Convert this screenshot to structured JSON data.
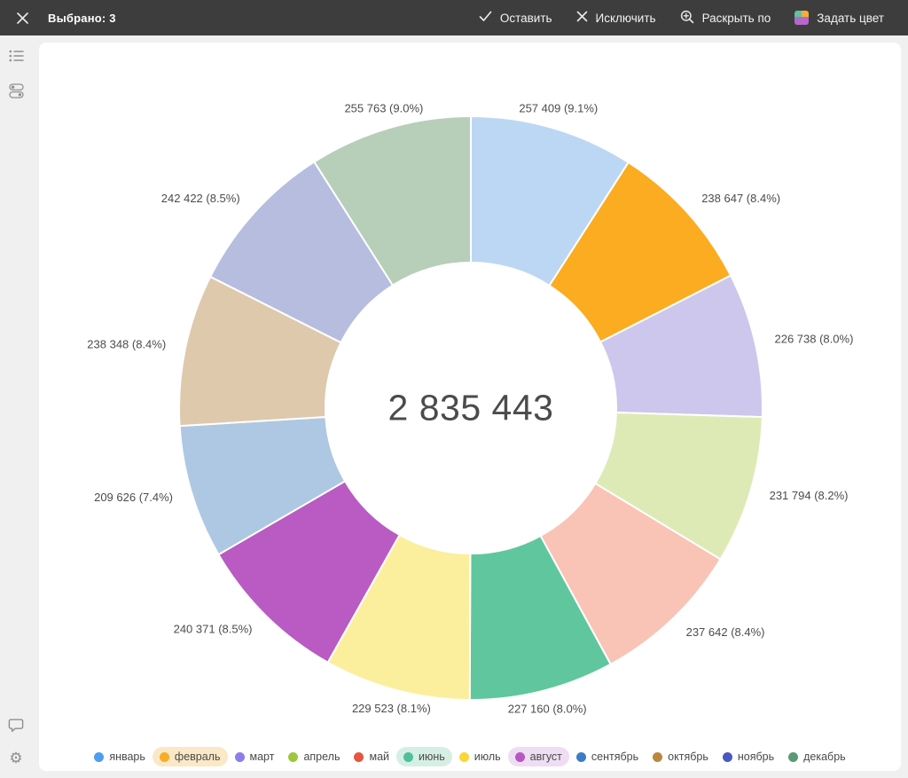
{
  "toolbar": {
    "selected_text": "Выбрано: 3",
    "keep_label": "Оставить",
    "exclude_label": "Исключить",
    "drilldown_label": "Раскрыть по",
    "set_color_label": "Задать цвет"
  },
  "chart_data": {
    "type": "pie",
    "subtype": "donut",
    "title": "",
    "center_total_label": "2 835 443",
    "total": 2835443,
    "legend_position": "bottom",
    "data_label_format": "value (percent)",
    "slices": [
      {
        "label": "январь",
        "value": 257409,
        "pct": 9.1,
        "data_label": "257 409 (9.1%)",
        "color": "#bcd7f3",
        "legend_color": "#4d9eef",
        "selected": false
      },
      {
        "label": "февраль",
        "value": 238647,
        "pct": 8.4,
        "data_label": "238 647 (8.4%)",
        "color": "#fbac20",
        "legend_color": "#f9ac28",
        "selected": true,
        "highlight": "#fbe8c6"
      },
      {
        "label": "март",
        "value": 226738,
        "pct": 8.0,
        "data_label": "226 738 (8.0%)",
        "color": "#cdc7ed",
        "legend_color": "#8b7fe8",
        "selected": false
      },
      {
        "label": "апрель",
        "value": 231794,
        "pct": 8.2,
        "data_label": "231 794 (8.2%)",
        "color": "#deeab6",
        "legend_color": "#9fc73c",
        "selected": false
      },
      {
        "label": "май",
        "value": 237642,
        "pct": 8.4,
        "data_label": "237 642 (8.4%)",
        "color": "#f9c3b5",
        "legend_color": "#e85442",
        "selected": false
      },
      {
        "label": "июнь",
        "value": 227160,
        "pct": 8.0,
        "data_label": "227 160 (8.0%)",
        "color": "#60c69e",
        "legend_color": "#4fbf9c",
        "selected": true,
        "highlight": "#d6efe4"
      },
      {
        "label": "июль",
        "value": 229523,
        "pct": 8.1,
        "data_label": "229 523 (8.1%)",
        "color": "#fbef9e",
        "legend_color": "#fbd637",
        "selected": false
      },
      {
        "label": "август",
        "value": 240371,
        "pct": 8.5,
        "data_label": "240 371 (8.5%)",
        "color": "#b95bc2",
        "legend_color": "#b657c4",
        "selected": true,
        "highlight": "#efddf3"
      },
      {
        "label": "сентябрь",
        "value": 209626,
        "pct": 7.4,
        "data_label": "209 626 (7.4%)",
        "color": "#aec8e3",
        "legend_color": "#3e7dc4",
        "selected": false
      },
      {
        "label": "октябрь",
        "value": 238348,
        "pct": 8.4,
        "data_label": "238 348 (8.4%)",
        "color": "#dec9ad",
        "legend_color": "#b9873f",
        "selected": false
      },
      {
        "label": "ноябрь",
        "value": 242422,
        "pct": 8.5,
        "data_label": "242 422 (8.5%)",
        "color": "#b6bddf",
        "legend_color": "#4a59be",
        "selected": false
      },
      {
        "label": "декабрь",
        "value": 255763,
        "pct": 9.0,
        "data_label": "255 763 (9.0%)",
        "color": "#b7ceb8",
        "legend_color": "#5b9a77",
        "selected": false
      }
    ]
  },
  "colors": {
    "topbar_bg": "#3d3d3d",
    "card_bg": "#ffffff",
    "page_bg": "#f0f0f1",
    "data_label_text": "#4c4c4c",
    "center_total_text": "#4b4b4b",
    "slice_border": "#ffffff"
  }
}
